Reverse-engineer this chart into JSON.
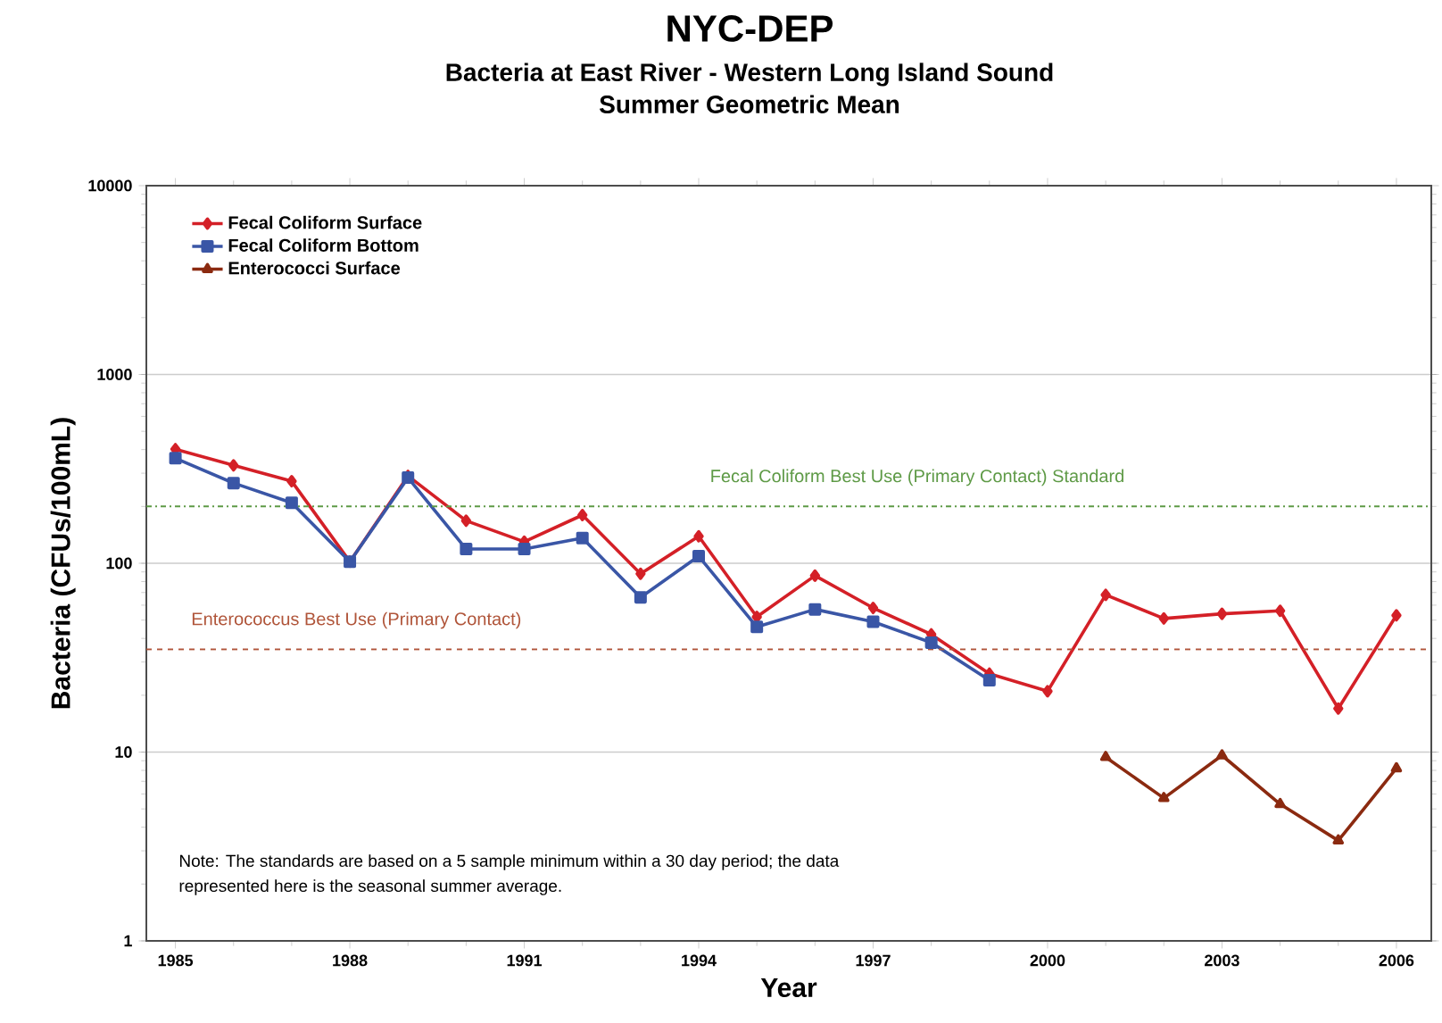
{
  "chart_data": {
    "type": "line",
    "title": "NYC-DEP",
    "subtitle": "Bacteria at East River - Western Long Island Sound\nSummer Geometric Mean",
    "xlabel": "Year",
    "ylabel": "Bacteria (CFUs/100mL)",
    "x": [
      1985,
      1986,
      1987,
      1988,
      1989,
      1990,
      1991,
      1992,
      1993,
      1994,
      1995,
      1996,
      1997,
      1998,
      1999,
      2000,
      2001,
      2002,
      2003,
      2004,
      2005,
      2006
    ],
    "series": [
      {
        "name": "Fecal Coliform Surface",
        "color": "#d42027",
        "marker": "diamond",
        "values": [
          402,
          330,
          272,
          102,
          290,
          168,
          130,
          180,
          88,
          139,
          52,
          86,
          58,
          42,
          26,
          21,
          68,
          51,
          54,
          56,
          17,
          53
        ]
      },
      {
        "name": "Fecal Coliform Bottom",
        "color": "#3a56a6",
        "marker": "square",
        "values": [
          360,
          266,
          209,
          102,
          284,
          119,
          119,
          136,
          66,
          109,
          46,
          57,
          49,
          38,
          24,
          null,
          null,
          null,
          null,
          null,
          null,
          null
        ]
      },
      {
        "name": "Enterococci Surface",
        "color": "#8b2a10",
        "marker": "triangle",
        "values": [
          null,
          null,
          null,
          null,
          null,
          null,
          null,
          null,
          null,
          null,
          null,
          null,
          null,
          null,
          null,
          null,
          9.4,
          5.7,
          9.6,
          5.3,
          3.4,
          8.2
        ]
      }
    ],
    "log": "y",
    "xlim": [
      1984.5,
      2006.6
    ],
    "ylim": [
      1,
      10000
    ],
    "xticks": [
      1985,
      1988,
      1991,
      1994,
      1997,
      2000,
      2003,
      2006
    ],
    "yticks": [
      1,
      10,
      100,
      1000,
      10000
    ],
    "grid": "y",
    "legend": "top left",
    "line_style": "solid",
    "ref_lines": [
      {
        "axis": "y",
        "value": 200,
        "label": "Fecal Coliform Best Use (Primary Contact) Standard",
        "color": "#5e9a46",
        "line_style": "dashdot"
      },
      {
        "axis": "y",
        "value": 35,
        "label": "Enterococcus Best Use (Primary Contact)",
        "color": "#b0553a",
        "line_style": "dashed"
      }
    ],
    "annotations": [
      "Note: The standards are based on a 5 sample minimum within a 30 day period; the data represented here is the seasonal summer average."
    ]
  }
}
